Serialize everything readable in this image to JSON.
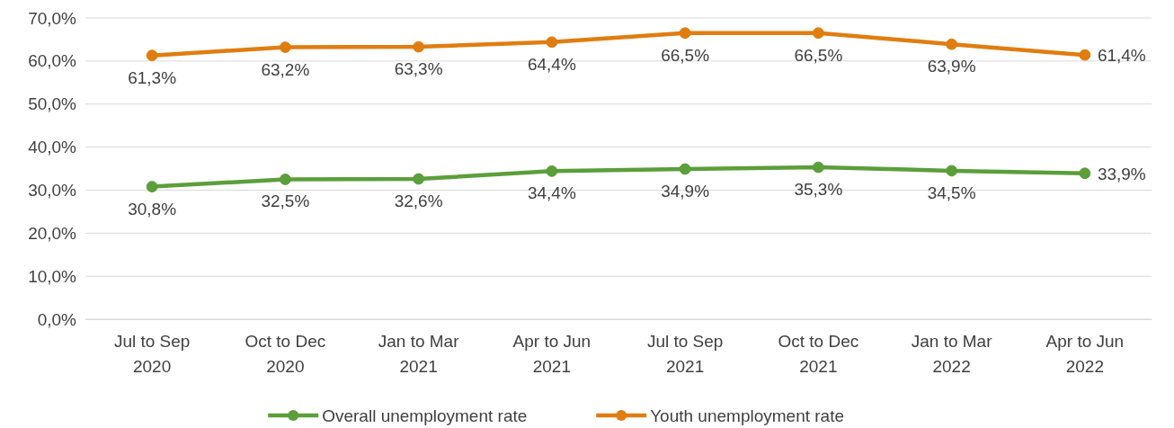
{
  "chart_data": {
    "type": "line",
    "categories": [
      "Jul to Sep 2020",
      "Oct to Dec 2020",
      "Jan to Mar 2021",
      "Apr to Jun 2021",
      "Jul to Sep 2021",
      "Oct to Dec 2021",
      "Jan to Mar 2022",
      "Apr to Jun 2022"
    ],
    "series": [
      {
        "name": "Overall unemployment rate",
        "color": "#5b9e3a",
        "values": [
          30.8,
          32.5,
          32.6,
          34.4,
          34.9,
          35.3,
          34.5,
          33.9
        ],
        "value_labels": [
          "30,8%",
          "32,5%",
          "32,6%",
          "34,4%",
          "34,9%",
          "35,3%",
          "34,5%",
          "33,9%"
        ]
      },
      {
        "name": "Youth unemployment rate",
        "color": "#e07d10",
        "values": [
          61.3,
          63.2,
          63.3,
          64.4,
          66.5,
          66.5,
          63.9,
          61.4
        ],
        "value_labels": [
          "61,3%",
          "63,2%",
          "63,3%",
          "64,4%",
          "66,5%",
          "66,5%",
          "63,9%",
          "61,4%"
        ]
      }
    ],
    "ylim": [
      0,
      70
    ],
    "yticks": [
      {
        "value": 0,
        "label": "0,0%"
      },
      {
        "value": 10,
        "label": "10,0%"
      },
      {
        "value": 20,
        "label": "20,0%"
      },
      {
        "value": 30,
        "label": "30,0%"
      },
      {
        "value": 40,
        "label": "40,0%"
      },
      {
        "value": 50,
        "label": "50,0%"
      },
      {
        "value": 60,
        "label": "60,0%"
      },
      {
        "value": 70,
        "label": "70,0%"
      }
    ],
    "grid": "y",
    "legend": "bottom",
    "marker": "circle",
    "line_style": "solid"
  }
}
